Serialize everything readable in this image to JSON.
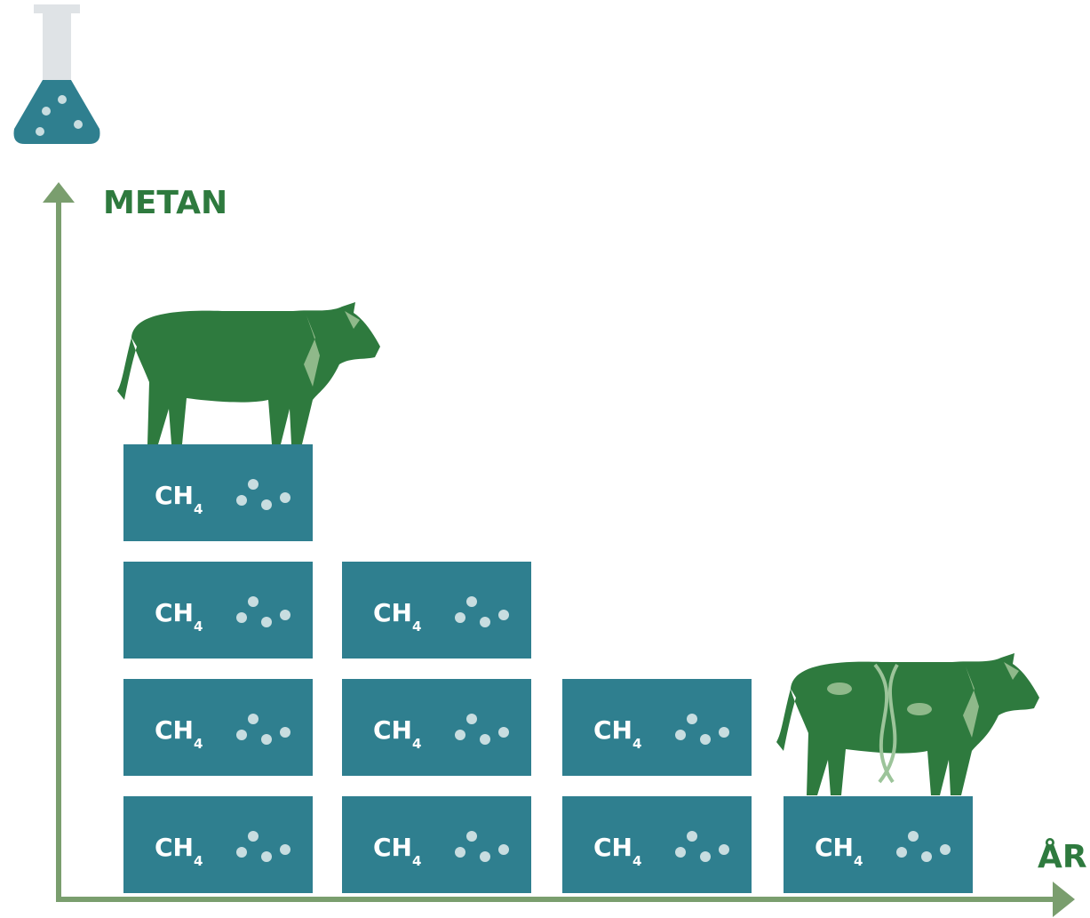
{
  "y_axis_label": "METAN",
  "x_axis_label": "ÅR",
  "columns": [
    {
      "blocks": [
        {
          "formula": "CH",
          "subscript": "4"
        },
        {
          "formula": "CH",
          "subscript": "4"
        },
        {
          "formula": "CH",
          "subscript": "4"
        },
        {
          "formula": "CH",
          "subscript": "4"
        }
      ]
    },
    {
      "blocks": [
        {
          "formula": "CH",
          "subscript": "4"
        },
        {
          "formula": "CH",
          "subscript": "4"
        },
        {
          "formula": "CH",
          "subscript": "4"
        }
      ]
    },
    {
      "blocks": [
        {
          "formula": "CH",
          "subscript": "4"
        },
        {
          "formula": "CH",
          "subscript": "4"
        }
      ]
    },
    {
      "blocks": [
        {
          "formula": "CH",
          "subscript": "4"
        }
      ]
    }
  ]
}
